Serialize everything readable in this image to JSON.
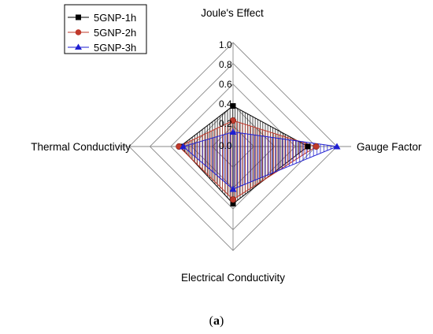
{
  "chart_data": {
    "type": "radar",
    "axes": [
      "Joule's Effect",
      "Gauge Factor",
      "Electrical Conductivity",
      "Thermal Conductivity"
    ],
    "ticks": [
      "1.0",
      "0.8",
      "0.6",
      "0.4",
      "0.2",
      "0.0"
    ],
    "rlim": [
      0,
      1.0
    ],
    "grid": true,
    "legend_position": "top-left",
    "series": [
      {
        "name": "5GNP-1h",
        "color": "#000000",
        "marker": "square",
        "values": [
          0.39,
          0.72,
          0.55,
          0.51
        ]
      },
      {
        "name": "5GNP-2h",
        "color": "#c0392b",
        "marker": "circle",
        "values": [
          0.25,
          0.8,
          0.51,
          0.52
        ]
      },
      {
        "name": "5GNP-3h",
        "color": "#1f1fd1",
        "marker": "triangle",
        "values": [
          0.14,
          1.0,
          0.41,
          0.48
        ]
      }
    ]
  },
  "caption": {
    "open": "(",
    "letter": "a",
    "close": ")"
  }
}
